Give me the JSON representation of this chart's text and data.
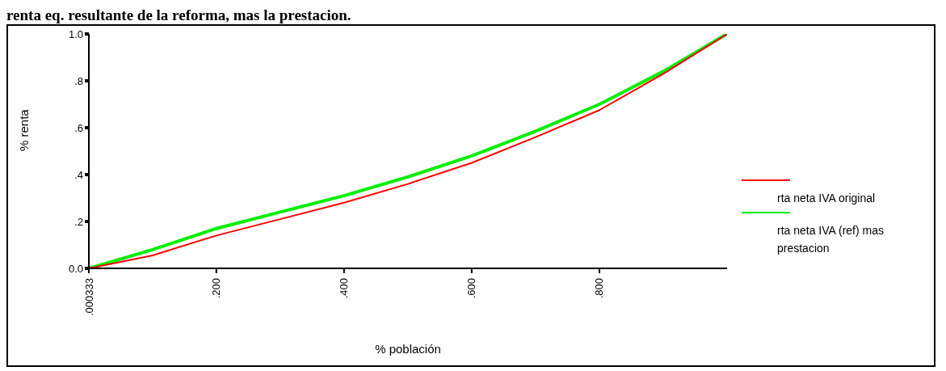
{
  "chart_data": {
    "type": "line",
    "title": "renta eq. resultante de la reforma, mas la prestacion.",
    "xlabel": "% población",
    "ylabel": "% renta",
    "x": [
      0.000333,
      0.1,
      0.2,
      0.3,
      0.4,
      0.5,
      0.6,
      0.7,
      0.8,
      0.9,
      1.0
    ],
    "series": [
      {
        "name": "rta neta IVA original",
        "color": "#ff0000",
        "values": [
          0,
          0.055,
          0.14,
          0.21,
          0.28,
          0.36,
          0.45,
          0.56,
          0.675,
          0.83,
          1.0
        ]
      },
      {
        "name": "rta neta IVA (ref) mas prestacion",
        "color": "#00ee00",
        "values": [
          0,
          0.08,
          0.17,
          0.24,
          0.31,
          0.39,
          0.48,
          0.585,
          0.7,
          0.84,
          1.0
        ]
      }
    ],
    "xlim": [
      0.000333,
      1.0
    ],
    "ylim": [
      0,
      1.0
    ],
    "xticks": [
      {
        "value": 0.000333,
        "label": ".000333"
      },
      {
        "value": 0.2,
        "label": ".200"
      },
      {
        "value": 0.4,
        "label": ".400"
      },
      {
        "value": 0.6,
        "label": ".600"
      },
      {
        "value": 0.8,
        "label": ".800"
      }
    ],
    "yticks": [
      {
        "value": 0,
        "label": "0.0"
      },
      {
        "value": 0.2,
        "label": ".2"
      },
      {
        "value": 0.4,
        "label": ".4"
      },
      {
        "value": 0.6,
        "label": ".6"
      },
      {
        "value": 0.8,
        "label": ".8"
      },
      {
        "value": 1.0,
        "label": "1.0"
      }
    ],
    "grid": false,
    "legend": "right",
    "marker": "none",
    "line_style": "solid"
  }
}
